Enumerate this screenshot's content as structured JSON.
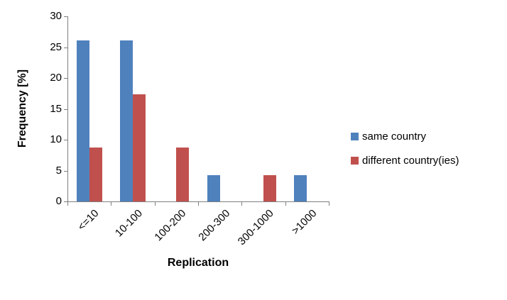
{
  "chart_data": {
    "type": "bar",
    "title": "",
    "xlabel": "Replication",
    "ylabel": "Frequency [%]",
    "categories": [
      "<=10",
      "10-100",
      "100-200",
      "200-300",
      "300-1000",
      ">1000"
    ],
    "series": [
      {
        "name": "same country",
        "color": "#4F81BD",
        "values": [
          26.1,
          26.1,
          0,
          4.3,
          0,
          4.3
        ]
      },
      {
        "name": "different country(ies)",
        "color": "#C0504D",
        "values": [
          8.7,
          17.4,
          8.7,
          0,
          4.3,
          0
        ]
      }
    ],
    "ylim": [
      0,
      30
    ],
    "yticks": [
      0,
      5,
      10,
      15,
      20,
      25,
      30
    ],
    "grid": false,
    "legend_position": "right",
    "axis_color": "#808080",
    "background_color": "#FFFFFF"
  }
}
